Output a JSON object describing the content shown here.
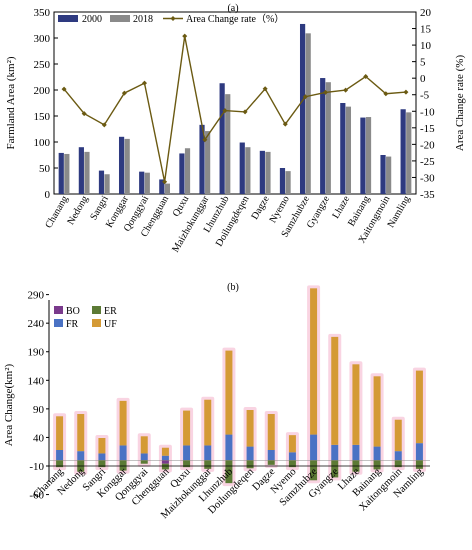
{
  "chart_data": [
    {
      "panel_label": "(a)",
      "type": "bar",
      "categories": [
        "Chanang",
        "Nedong",
        "Sangri",
        "Konggar",
        "Qonggyai",
        "Chengguan",
        "Quxu",
        "Maizhokunggar",
        "Lhunzhub",
        "Doilungdeqen",
        "Dagze",
        "Nyemo",
        "Samzhubze",
        "Gyangze",
        "Lhaze",
        "Bainang",
        "Xaitongmoin",
        "Namling"
      ],
      "series": [
        {
          "name": "2000",
          "type": "bar",
          "color": "#2e3a80",
          "values": [
            79,
            90,
            45,
            110,
            43,
            28,
            78,
            133,
            213,
            99,
            83,
            50,
            327,
            223,
            175,
            147,
            75,
            163
          ]
        },
        {
          "name": "2018",
          "type": "bar",
          "color": "#8a8a8a",
          "values": [
            77,
            81,
            38,
            106,
            41,
            20,
            88,
            121,
            192,
            90,
            81,
            44,
            309,
            215,
            168,
            148,
            72,
            157
          ]
        },
        {
          "name": "Area Change rate（%）",
          "type": "line",
          "axis": "right",
          "color": "#6b5a12",
          "values": [
            -3.3,
            -10.7,
            -14.1,
            -4.5,
            -1.5,
            -31.3,
            12.7,
            -18.6,
            -9.8,
            -10.2,
            -3.2,
            -13.9,
            -5.6,
            -4.3,
            -3.6,
            0.5,
            -4.7,
            -4.2
          ]
        }
      ],
      "ylabel": "Farmland Area (km²)",
      "ylabel2": "Area Change rate (%)",
      "ylim": [
        0,
        350
      ],
      "y_ticks": [
        0,
        50,
        100,
        150,
        200,
        250,
        300,
        350
      ],
      "ylim2": [
        -35,
        20
      ],
      "y2_ticks": [
        -35,
        -30,
        -25,
        -20,
        -15,
        -10,
        -5,
        0,
        5,
        10,
        15,
        20
      ],
      "legend_position": "top-left"
    },
    {
      "panel_label": "(b)",
      "type": "bar",
      "stacked": true,
      "categories": [
        "Chanang",
        "Nedong",
        "Sangri",
        "Konggar",
        "Qonggyai",
        "Chengguan",
        "Quxu",
        "Maizhokunggar",
        "Lhunzhub",
        "Doilungdeqen",
        "Dagze",
        "Nyemo",
        "Samzhubze",
        "Gyangze",
        "Lhaze",
        "Bainang",
        "Xaitongmoin",
        "Namling"
      ],
      "series": [
        {
          "name": "BO",
          "color": "#7a3a8c",
          "values": [
            0,
            0,
            0,
            0,
            0,
            -6,
            0,
            0,
            0,
            0,
            0,
            0,
            0,
            0,
            0,
            0,
            0,
            0
          ]
        },
        {
          "name": "ER",
          "color": "#5c7a35",
          "values": [
            -12,
            -20,
            -12,
            -18,
            -6,
            -10,
            -12,
            -15,
            -40,
            -14,
            -8,
            -12,
            -35,
            -30,
            -20,
            -16,
            -12,
            -15
          ]
        },
        {
          "name": "FR",
          "color": "#4a72c4",
          "values": [
            18,
            16,
            12,
            26,
            12,
            8,
            26,
            26,
            45,
            24,
            18,
            14,
            45,
            27,
            27,
            24,
            16,
            30
          ]
        },
        {
          "name": "UF",
          "color": "#d49a35",
          "values": [
            59,
            65,
            27,
            78,
            30,
            14,
            61,
            80,
            147,
            64,
            63,
            30,
            256,
            189,
            141,
            123,
            55,
            127
          ]
        }
      ],
      "highlight_color": "#f9d4e2",
      "ylabel": "Area Change(km²)",
      "ylim": [
        -60,
        310
      ],
      "y_ticks": [
        -60,
        -10,
        40,
        90,
        140,
        190,
        240,
        290
      ],
      "legend_position": "top-left"
    }
  ]
}
